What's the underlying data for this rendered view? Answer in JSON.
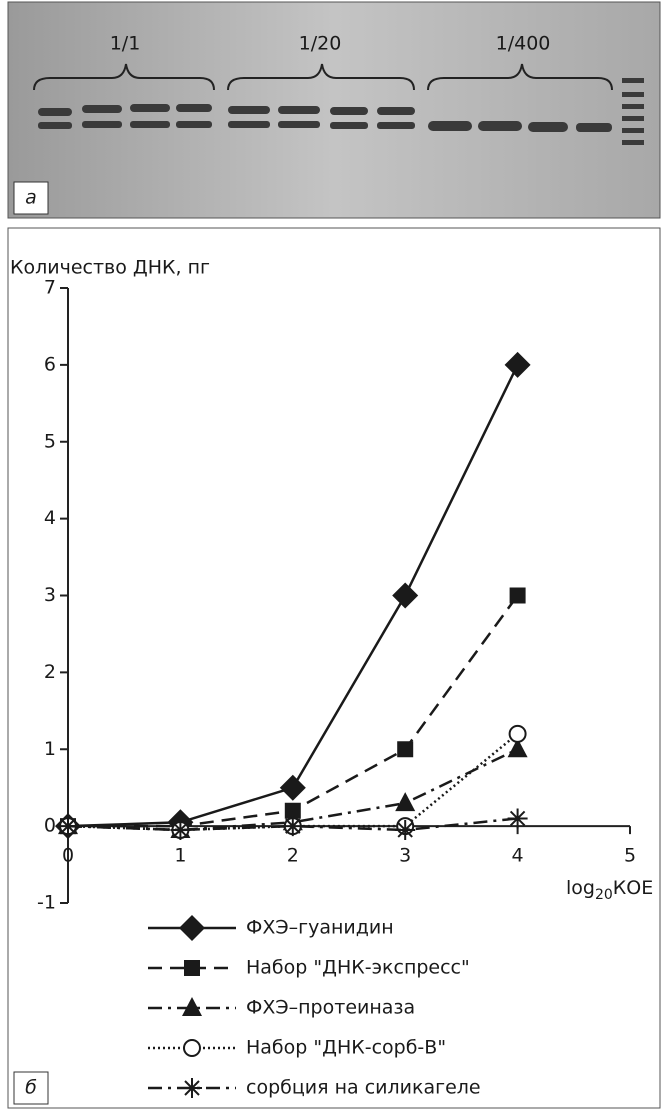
{
  "gel": {
    "dilutions": [
      "1/1",
      "1/20",
      "1/400"
    ],
    "panel_label": "а"
  },
  "chart_data": {
    "type": "line",
    "panel_label": "б",
    "y_label": "Количество ДНК, пг",
    "x_label_parts": [
      "log",
      "20",
      "КОЕ"
    ],
    "x": [
      0,
      1,
      2,
      3,
      4
    ],
    "xlim": [
      0,
      5
    ],
    "xticks": [
      0,
      1,
      2,
      3,
      4,
      5
    ],
    "ylim": [
      -1,
      7
    ],
    "yticks": [
      -1,
      0,
      1,
      2,
      3,
      4,
      5,
      6,
      7
    ],
    "series": [
      {
        "name": "ФХЭ–гуанидин",
        "color": "#1a1a1a",
        "marker": "diamond",
        "dash": "solid",
        "values": [
          0,
          0.05,
          0.5,
          3,
          6
        ]
      },
      {
        "name": "Набор \"ДНК-экспресс\"",
        "color": "#1a1a1a",
        "marker": "square",
        "dash": "dashed",
        "values": [
          0,
          0,
          0.2,
          1,
          3
        ]
      },
      {
        "name": "ФХЭ–протеиназа",
        "color": "#1a1a1a",
        "marker": "triangle",
        "dash": "dashdot",
        "values": [
          0,
          -0.05,
          0.05,
          0.3,
          1
        ]
      },
      {
        "name": "Набор \"ДНК-сорб-В\"",
        "color": "#1a1a1a",
        "marker": "circle",
        "dash": "dotted",
        "values": [
          0,
          -0.05,
          0,
          0,
          1.2
        ]
      },
      {
        "name": "сорбция на силикагеле",
        "color": "#1a1a1a",
        "marker": "asterisk",
        "dash": "dashdot",
        "values": [
          0,
          -0.05,
          0,
          -0.05,
          0.1
        ]
      }
    ]
  }
}
